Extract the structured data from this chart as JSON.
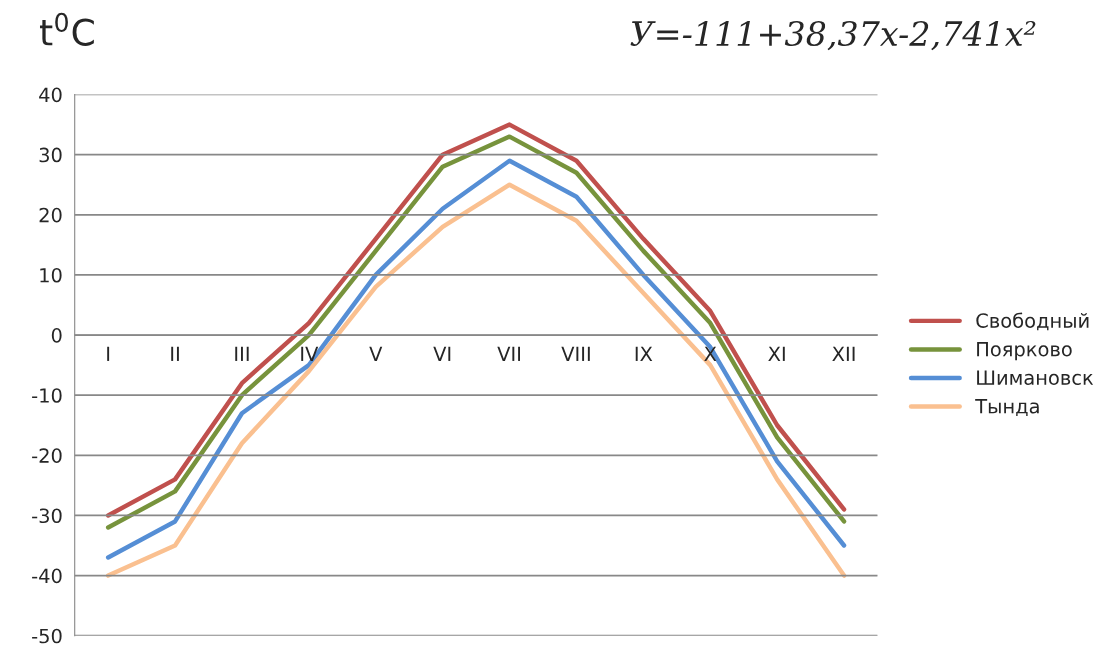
{
  "chart_data": {
    "type": "line",
    "ylabel": "t$^{0}$C",
    "annotations": [
      "У=-111+38,37x-2,741x²"
    ],
    "categories": [
      "I",
      "II",
      "III",
      "IV",
      "V",
      "VI",
      "VII",
      "VIII",
      "IX",
      "X",
      "XI",
      "XII"
    ],
    "series": [
      {
        "name": "Свободный",
        "color": "#c0504d",
        "values": [
          -30,
          -24,
          -8,
          2,
          16,
          30,
          35,
          29,
          16,
          4,
          -15,
          -29
        ]
      },
      {
        "name": "Поярково",
        "color": "#77933c",
        "values": [
          -32,
          -26,
          -10,
          0,
          14,
          28,
          33,
          27,
          14,
          2,
          -17,
          -31
        ]
      },
      {
        "name": "Шимановск",
        "color": "#558ed5",
        "values": [
          -37,
          -31,
          -13,
          -5,
          10,
          21,
          29,
          23,
          10,
          -2,
          -21,
          -35
        ]
      },
      {
        "name": "Тында",
        "color": "#fac090",
        "values": [
          -40,
          -35,
          -18,
          -6,
          8,
          18,
          25,
          19,
          7,
          -5,
          -24,
          -40
        ]
      }
    ],
    "ylim": [
      -50,
      40
    ],
    "yticks": [
      -50,
      -40,
      -30,
      -20,
      -10,
      0,
      10,
      20,
      30,
      40
    ],
    "grid": "y",
    "legend": "right",
    "marker": "none",
    "line_style": "solid"
  }
}
